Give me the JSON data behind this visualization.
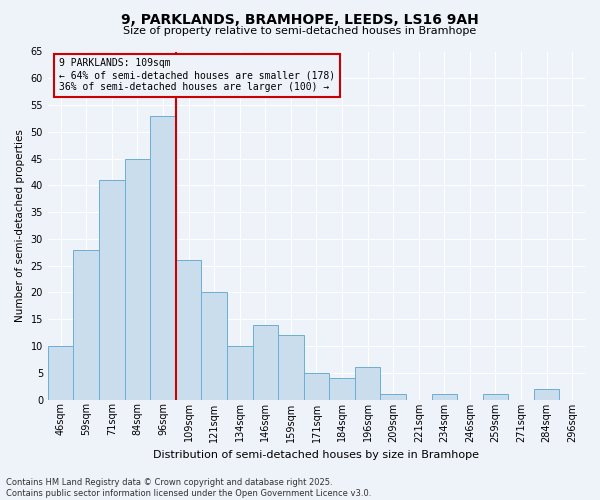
{
  "title1": "9, PARKLANDS, BRAMHOPE, LEEDS, LS16 9AH",
  "title2": "Size of property relative to semi-detached houses in Bramhope",
  "xlabel": "Distribution of semi-detached houses by size in Bramhope",
  "ylabel": "Number of semi-detached properties",
  "categories": [
    "46sqm",
    "59sqm",
    "71sqm",
    "84sqm",
    "96sqm",
    "109sqm",
    "121sqm",
    "134sqm",
    "146sqm",
    "159sqm",
    "171sqm",
    "184sqm",
    "196sqm",
    "209sqm",
    "221sqm",
    "234sqm",
    "246sqm",
    "259sqm",
    "271sqm",
    "284sqm",
    "296sqm"
  ],
  "values": [
    10,
    28,
    41,
    45,
    53,
    26,
    20,
    10,
    14,
    12,
    5,
    4,
    6,
    1,
    0,
    1,
    0,
    1,
    0,
    2,
    0
  ],
  "bar_color": "#c9dded",
  "bar_edge_color": "#6aaed6",
  "vline_color": "#cc0000",
  "vline_x": 4.5,
  "annotation_title": "9 PARKLANDS: 109sqm",
  "annotation_line1": "← 64% of semi-detached houses are smaller (178)",
  "annotation_line2": "36% of semi-detached houses are larger (100) →",
  "annotation_box_color": "#cc0000",
  "ylim": [
    0,
    65
  ],
  "yticks": [
    0,
    5,
    10,
    15,
    20,
    25,
    30,
    35,
    40,
    45,
    50,
    55,
    60,
    65
  ],
  "footnote1": "Contains HM Land Registry data © Crown copyright and database right 2025.",
  "footnote2": "Contains public sector information licensed under the Open Government Licence v3.0.",
  "bg_color": "#eef2f9",
  "grid_color": "#ffffff"
}
